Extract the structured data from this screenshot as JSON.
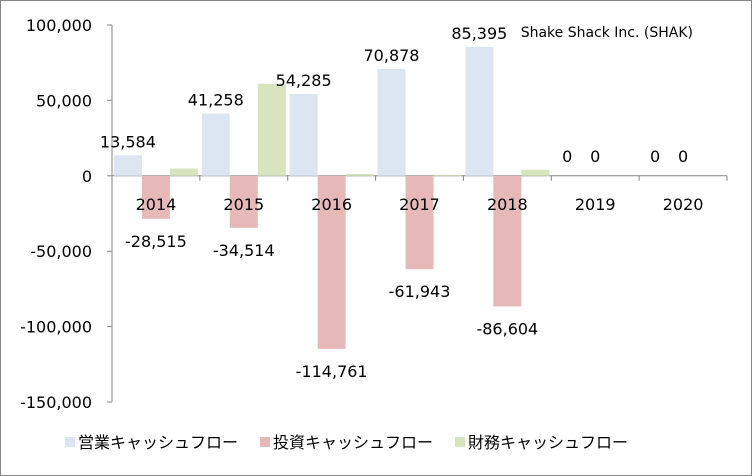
{
  "chart_data": {
    "type": "bar",
    "title": "Shake Shack Inc. (SHAK)",
    "categories": [
      "2014",
      "2015",
      "2016",
      "2017",
      "2018",
      "2019",
      "2020"
    ],
    "series": [
      {
        "name": "営業キャッシュフロー",
        "color": "#dce6f2",
        "values": [
          13584,
          41258,
          54285,
          70878,
          85395,
          0,
          0
        ],
        "labels": [
          "13,584",
          "41,258",
          "54,285",
          "70,878",
          "85,395",
          "0",
          "0"
        ]
      },
      {
        "name": "投資キャッシュフロー",
        "color": "#e6b9b8",
        "values": [
          -28515,
          -34514,
          -114761,
          -61943,
          -86604,
          0,
          0
        ],
        "labels": [
          "-28,515",
          "-34,514",
          "-114,761",
          "-61,943",
          "-86,604",
          "0",
          "0"
        ]
      },
      {
        "name": "財務キャッシュフロー",
        "color": "#d7e4bd",
        "values": [
          4800,
          61000,
          1200,
          600,
          4000,
          0,
          0
        ],
        "labels": []
      }
    ],
    "ylim": [
      -150000,
      100000
    ],
    "yticks": [
      100000,
      50000,
      0,
      -50000,
      -100000,
      -150000
    ],
    "ytick_labels": [
      "100,000",
      "50,000",
      "0",
      "-50,000",
      "-100,000",
      "-150,000"
    ],
    "grid": false,
    "legend_position": "bottom"
  }
}
